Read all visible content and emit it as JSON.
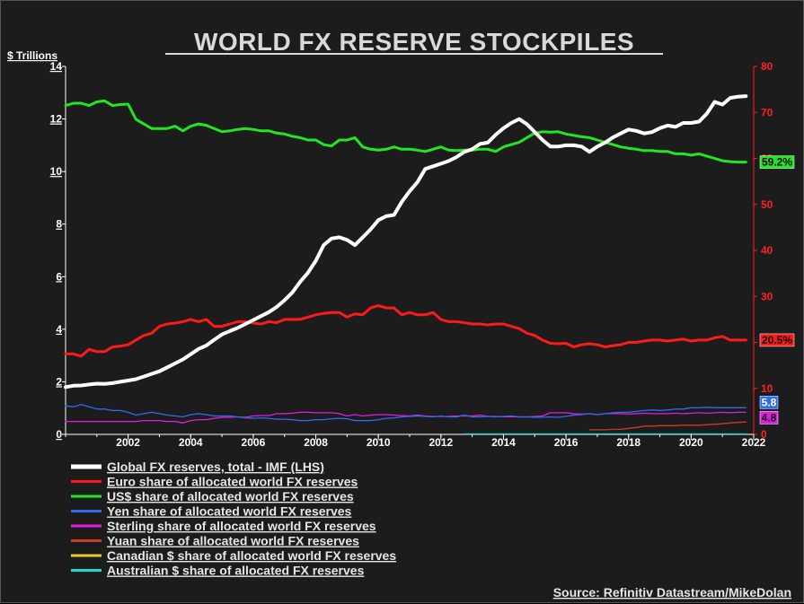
{
  "chart_data": {
    "type": "line",
    "title": "WORLD FX RESERVE STOCKPILES",
    "ylabel_left": "$ Trillions",
    "ylim_left": [
      0,
      14
    ],
    "yticks_left": [
      "0",
      "2",
      "4",
      "6",
      "8",
      "10",
      "12",
      "14"
    ],
    "ylim_right": [
      0,
      80
    ],
    "yticks_right": [
      "0",
      "10",
      "20",
      "30",
      "40",
      "50",
      "60",
      "70",
      "80"
    ],
    "xlim": [
      2000.0,
      2022.0
    ],
    "xticks": [
      "2002",
      "2004",
      "2006",
      "2008",
      "2010",
      "2012",
      "2014",
      "2016",
      "2018",
      "2020",
      "2022"
    ],
    "grid": false,
    "legend_position": "bottom",
    "source": "Source: Refinitiv Datastream/MikeDolan",
    "series": [
      {
        "name": "Global FX reserves, total - IMF (LHS)",
        "axis": "left",
        "color": "#ffffff",
        "x": [
          2000.0,
          2000.25,
          2000.5,
          2000.75,
          2001.0,
          2001.25,
          2001.5,
          2001.75,
          2002.0,
          2002.25,
          2002.5,
          2002.75,
          2003.0,
          2003.25,
          2003.5,
          2003.75,
          2004.0,
          2004.25,
          2004.5,
          2004.75,
          2005.0,
          2005.25,
          2005.5,
          2005.75,
          2006.0,
          2006.25,
          2006.5,
          2006.75,
          2007.0,
          2007.25,
          2007.5,
          2007.75,
          2008.0,
          2008.25,
          2008.5,
          2008.75,
          2009.0,
          2009.25,
          2009.5,
          2009.75,
          2010.0,
          2010.25,
          2010.5,
          2010.75,
          2011.0,
          2011.25,
          2011.5,
          2011.75,
          2012.0,
          2012.25,
          2012.5,
          2012.75,
          2013.0,
          2013.25,
          2013.5,
          2013.75,
          2014.0,
          2014.25,
          2014.5,
          2014.75,
          2015.0,
          2015.25,
          2015.5,
          2015.75,
          2016.0,
          2016.25,
          2016.5,
          2016.75,
          2017.0,
          2017.25,
          2017.5,
          2017.75,
          2018.0,
          2018.25,
          2018.5,
          2018.75,
          2019.0,
          2019.25,
          2019.5,
          2019.75,
          2020.0,
          2020.25,
          2020.5,
          2020.75,
          2021.0,
          2021.25,
          2021.5,
          2021.75
        ],
        "values": [
          1.8,
          1.85,
          1.86,
          1.9,
          1.93,
          1.92,
          1.95,
          2.0,
          2.05,
          2.1,
          2.2,
          2.3,
          2.4,
          2.55,
          2.7,
          2.85,
          3.05,
          3.25,
          3.38,
          3.6,
          3.8,
          3.93,
          4.05,
          4.2,
          4.35,
          4.5,
          4.65,
          4.85,
          5.1,
          5.4,
          5.8,
          6.15,
          6.6,
          7.2,
          7.45,
          7.5,
          7.4,
          7.2,
          7.5,
          7.8,
          8.15,
          8.3,
          8.35,
          8.85,
          9.25,
          9.6,
          10.1,
          10.2,
          10.3,
          10.4,
          10.55,
          10.75,
          10.85,
          11.05,
          11.1,
          11.4,
          11.65,
          11.85,
          12.0,
          11.8,
          11.5,
          11.2,
          10.95,
          10.95,
          11.0,
          11.0,
          10.95,
          10.75,
          10.95,
          11.1,
          11.3,
          11.45,
          11.6,
          11.55,
          11.45,
          11.5,
          11.65,
          11.75,
          11.7,
          11.85,
          11.85,
          11.9,
          12.2,
          12.65,
          12.55,
          12.8,
          12.85,
          12.87
        ]
      },
      {
        "name": "Euro share of allocated world FX reserves",
        "axis": "right",
        "color": "#ff1a1a",
        "x": [
          2000.0,
          2000.25,
          2000.5,
          2000.75,
          2001.0,
          2001.25,
          2001.5,
          2001.75,
          2002.0,
          2002.25,
          2002.5,
          2002.75,
          2003.0,
          2003.25,
          2003.5,
          2003.75,
          2004.0,
          2004.25,
          2004.5,
          2004.75,
          2005.0,
          2005.25,
          2005.5,
          2005.75,
          2006.0,
          2006.25,
          2006.5,
          2006.75,
          2007.0,
          2007.25,
          2007.5,
          2007.75,
          2008.0,
          2008.25,
          2008.5,
          2008.75,
          2009.0,
          2009.25,
          2009.5,
          2009.75,
          2010.0,
          2010.25,
          2010.5,
          2010.75,
          2011.0,
          2011.25,
          2011.5,
          2011.75,
          2012.0,
          2012.25,
          2012.5,
          2012.75,
          2013.0,
          2013.25,
          2013.5,
          2013.75,
          2014.0,
          2014.25,
          2014.5,
          2014.75,
          2015.0,
          2015.25,
          2015.5,
          2015.75,
          2016.0,
          2016.25,
          2016.5,
          2016.75,
          2017.0,
          2017.25,
          2017.5,
          2017.75,
          2018.0,
          2018.25,
          2018.5,
          2018.75,
          2019.0,
          2019.25,
          2019.5,
          2019.75,
          2020.0,
          2020.25,
          2020.5,
          2020.75,
          2021.0,
          2021.25,
          2021.5,
          2021.75
        ],
        "values": [
          17.5,
          17.5,
          17.0,
          18.5,
          18.0,
          18.0,
          19.0,
          19.2,
          19.5,
          20.5,
          21.5,
          22.0,
          23.5,
          24.0,
          24.2,
          24.5,
          25.0,
          24.5,
          25.0,
          23.5,
          23.5,
          24.0,
          24.5,
          24.5,
          24.2,
          24.0,
          24.5,
          24.3,
          25.0,
          25.0,
          25.0,
          25.5,
          26.0,
          26.3,
          26.5,
          26.5,
          25.5,
          26.2,
          26.0,
          27.5,
          28.0,
          27.5,
          27.5,
          26.0,
          26.5,
          26.0,
          26.0,
          26.5,
          25.0,
          24.5,
          24.5,
          24.3,
          24.0,
          24.0,
          23.8,
          24.0,
          24.0,
          23.5,
          23.0,
          22.0,
          21.5,
          20.5,
          19.8,
          19.7,
          19.8,
          19.0,
          19.5,
          19.7,
          19.5,
          19.0,
          19.3,
          19.5,
          20.0,
          20.0,
          20.3,
          20.5,
          20.5,
          20.3,
          20.5,
          20.7,
          20.3,
          20.5,
          20.5,
          21.0,
          21.3,
          20.5,
          20.5,
          20.5
        ]
      },
      {
        "name": "US$ share of allocated world FX reserves",
        "axis": "right",
        "color": "#22e622",
        "x": [
          2000.0,
          2000.25,
          2000.5,
          2000.75,
          2001.0,
          2001.25,
          2001.5,
          2001.75,
          2002.0,
          2002.25,
          2002.5,
          2002.75,
          2003.0,
          2003.25,
          2003.5,
          2003.75,
          2004.0,
          2004.25,
          2004.5,
          2004.75,
          2005.0,
          2005.25,
          2005.5,
          2005.75,
          2006.0,
          2006.25,
          2006.5,
          2006.75,
          2007.0,
          2007.25,
          2007.5,
          2007.75,
          2008.0,
          2008.25,
          2008.5,
          2008.75,
          2009.0,
          2009.25,
          2009.5,
          2009.75,
          2010.0,
          2010.25,
          2010.5,
          2010.75,
          2011.0,
          2011.25,
          2011.5,
          2011.75,
          2012.0,
          2012.25,
          2012.5,
          2012.75,
          2013.0,
          2013.25,
          2013.5,
          2013.75,
          2014.0,
          2014.25,
          2014.5,
          2014.75,
          2015.0,
          2015.25,
          2015.5,
          2015.75,
          2016.0,
          2016.25,
          2016.5,
          2016.75,
          2017.0,
          2017.25,
          2017.5,
          2017.75,
          2018.0,
          2018.25,
          2018.5,
          2018.75,
          2019.0,
          2019.25,
          2019.5,
          2019.75,
          2020.0,
          2020.25,
          2020.5,
          2020.75,
          2021.0,
          2021.25,
          2021.5,
          2021.75
        ],
        "values": [
          71.5,
          72.0,
          72.0,
          71.5,
          72.3,
          72.5,
          71.5,
          71.7,
          71.8,
          68.5,
          67.5,
          66.5,
          66.5,
          66.5,
          67.0,
          66.0,
          67.0,
          67.5,
          67.2,
          66.5,
          65.8,
          66.0,
          66.3,
          66.5,
          66.3,
          66.0,
          66.0,
          65.5,
          65.3,
          64.8,
          64.5,
          64.0,
          64.0,
          63.0,
          62.7,
          64.0,
          64.0,
          64.5,
          62.5,
          62.0,
          61.8,
          62.0,
          62.5,
          62.0,
          62.0,
          61.8,
          61.5,
          62.0,
          62.5,
          61.8,
          61.7,
          61.8,
          61.8,
          62.0,
          62.0,
          61.5,
          62.5,
          63.0,
          63.5,
          64.5,
          65.5,
          65.8,
          65.7,
          65.8,
          65.3,
          65.0,
          64.7,
          64.5,
          64.0,
          63.5,
          63.0,
          62.5,
          62.2,
          62.0,
          61.7,
          61.7,
          61.5,
          61.5,
          61.0,
          61.0,
          60.7,
          61.0,
          60.5,
          60.0,
          59.5,
          59.3,
          59.2,
          59.2
        ]
      },
      {
        "name": "Yen share of allocated world FX reserves",
        "axis": "right",
        "color": "#2e6cf0",
        "x": [
          2000.0,
          2000.25,
          2000.5,
          2000.75,
          2001.0,
          2001.25,
          2001.5,
          2001.75,
          2002.0,
          2002.25,
          2002.5,
          2002.75,
          2003.0,
          2003.25,
          2003.5,
          2003.75,
          2004.0,
          2004.25,
          2004.5,
          2004.75,
          2005.0,
          2005.25,
          2005.5,
          2005.75,
          2006.0,
          2006.25,
          2006.5,
          2006.75,
          2007.0,
          2007.25,
          2007.5,
          2007.75,
          2008.0,
          2008.25,
          2008.5,
          2008.75,
          2009.0,
          2009.25,
          2009.5,
          2009.75,
          2010.0,
          2010.25,
          2010.5,
          2010.75,
          2011.0,
          2011.25,
          2011.5,
          2011.75,
          2012.0,
          2012.25,
          2012.5,
          2012.75,
          2013.0,
          2013.25,
          2013.5,
          2013.75,
          2014.0,
          2014.25,
          2014.5,
          2014.75,
          2015.0,
          2015.25,
          2015.5,
          2015.75,
          2016.0,
          2016.25,
          2016.5,
          2016.75,
          2017.0,
          2017.25,
          2017.5,
          2017.75,
          2018.0,
          2018.25,
          2018.5,
          2018.75,
          2019.0,
          2019.25,
          2019.5,
          2019.75,
          2020.0,
          2020.25,
          2020.5,
          2020.75,
          2021.0,
          2021.25,
          2021.5,
          2021.75
        ],
        "values": [
          6.2,
          6.0,
          6.5,
          6.0,
          5.5,
          5.5,
          5.2,
          5.2,
          4.8,
          4.2,
          4.5,
          4.8,
          4.5,
          4.2,
          4.0,
          3.8,
          4.3,
          4.5,
          4.3,
          4.0,
          4.0,
          4.0,
          3.8,
          3.6,
          3.5,
          3.6,
          3.5,
          3.3,
          3.3,
          3.2,
          3.0,
          3.0,
          3.2,
          3.2,
          3.4,
          3.5,
          3.4,
          3.0,
          3.0,
          3.0,
          3.2,
          3.5,
          3.6,
          3.8,
          3.9,
          4.0,
          3.9,
          3.8,
          4.0,
          3.8,
          3.8,
          4.2,
          3.8,
          3.8,
          3.9,
          3.8,
          3.9,
          4.0,
          3.8,
          3.8,
          3.7,
          3.7,
          3.8,
          3.7,
          3.9,
          4.2,
          4.3,
          4.5,
          4.3,
          4.5,
          4.7,
          4.8,
          4.8,
          5.0,
          5.2,
          5.3,
          5.2,
          5.3,
          5.5,
          5.5,
          5.8,
          5.8,
          5.9,
          5.8,
          5.8,
          5.8,
          5.8,
          5.8
        ]
      },
      {
        "name": "Sterling share of allocated world FX reserves",
        "axis": "right",
        "color": "#e21ce2",
        "x": [
          2000.0,
          2000.25,
          2000.5,
          2000.75,
          2001.0,
          2001.25,
          2001.5,
          2001.75,
          2002.0,
          2002.25,
          2002.5,
          2002.75,
          2003.0,
          2003.25,
          2003.5,
          2003.75,
          2004.0,
          2004.25,
          2004.5,
          2004.75,
          2005.0,
          2005.25,
          2005.5,
          2005.75,
          2006.0,
          2006.25,
          2006.5,
          2006.75,
          2007.0,
          2007.25,
          2007.5,
          2007.75,
          2008.0,
          2008.25,
          2008.5,
          2008.75,
          2009.0,
          2009.25,
          2009.5,
          2009.75,
          2010.0,
          2010.25,
          2010.5,
          2010.75,
          2011.0,
          2011.25,
          2011.5,
          2011.75,
          2012.0,
          2012.25,
          2012.5,
          2012.75,
          2013.0,
          2013.25,
          2013.5,
          2013.75,
          2014.0,
          2014.25,
          2014.5,
          2014.75,
          2015.0,
          2015.25,
          2015.5,
          2015.75,
          2016.0,
          2016.25,
          2016.5,
          2016.75,
          2017.0,
          2017.25,
          2017.5,
          2017.75,
          2018.0,
          2018.25,
          2018.5,
          2018.75,
          2019.0,
          2019.25,
          2019.5,
          2019.75,
          2020.0,
          2020.25,
          2020.5,
          2020.75,
          2021.0,
          2021.25,
          2021.5,
          2021.75
        ],
        "values": [
          2.8,
          2.8,
          2.8,
          2.8,
          2.8,
          2.8,
          2.8,
          2.8,
          2.8,
          2.8,
          3.0,
          3.0,
          3.0,
          2.8,
          2.8,
          2.5,
          3.0,
          3.2,
          3.2,
          3.5,
          3.7,
          3.7,
          3.8,
          3.7,
          4.0,
          4.1,
          4.1,
          4.5,
          4.5,
          4.6,
          4.8,
          4.8,
          4.7,
          4.7,
          4.7,
          4.5,
          4.0,
          4.3,
          4.0,
          4.2,
          4.3,
          4.3,
          4.2,
          4.1,
          4.0,
          4.2,
          4.0,
          3.9,
          3.9,
          3.9,
          4.0,
          4.0,
          4.0,
          4.2,
          3.9,
          3.9,
          3.8,
          3.8,
          3.8,
          3.8,
          3.9,
          4.0,
          4.7,
          4.7,
          4.7,
          4.5,
          4.4,
          4.5,
          4.3,
          4.5,
          4.5,
          4.5,
          4.4,
          4.5,
          4.6,
          4.5,
          4.5,
          4.5,
          4.6,
          4.5,
          4.6,
          4.7,
          4.6,
          4.7,
          4.8,
          4.7,
          4.8,
          4.8
        ]
      },
      {
        "name": "Yuan share of allocated world FX reserves",
        "axis": "right",
        "color": "#c63c24",
        "x": [
          2016.75,
          2017.0,
          2017.25,
          2017.5,
          2017.75,
          2018.0,
          2018.25,
          2018.5,
          2018.75,
          2019.0,
          2019.25,
          2019.5,
          2019.75,
          2020.0,
          2020.25,
          2020.5,
          2020.75,
          2021.0,
          2021.25,
          2021.5,
          2021.75
        ],
        "values": [
          1.0,
          1.0,
          1.0,
          1.1,
          1.1,
          1.3,
          1.5,
          1.8,
          1.8,
          1.9,
          1.9,
          1.9,
          2.0,
          2.0,
          2.0,
          2.1,
          2.2,
          2.3,
          2.5,
          2.6,
          2.7
        ]
      },
      {
        "name": "Canadian $ share of allocated world FX reserves",
        "axis": "right",
        "color": "#e6d21a",
        "x": [],
        "values": []
      },
      {
        "name": "Australian $ share of allocated FX reserves",
        "axis": "right",
        "color": "#18d8d0",
        "x": [
          2012.75,
          2013.5,
          2014.5,
          2015.5,
          2016.5,
          2017.5,
          2018.5,
          2019.5,
          2020.5,
          2021.5,
          2021.75
        ],
        "values": [
          0.1,
          0.1,
          0.1,
          0.1,
          0.1,
          0.1,
          0.1,
          0.1,
          0.1,
          0.1,
          0.1
        ]
      }
    ],
    "end_labels": [
      {
        "text": "59.2%",
        "value": 59.2,
        "bg": "#22e622",
        "fg": "#000000"
      },
      {
        "text": "20.5%",
        "value": 20.5,
        "bg": "#ff1a1a",
        "fg": "#000000"
      },
      {
        "text": "5.8",
        "value": 5.8,
        "bg": "#2e6cf0",
        "fg": "#ffffff"
      },
      {
        "text": "4.8",
        "value": 4.8,
        "bg": "#e21ce2",
        "fg": "#000000"
      }
    ]
  }
}
